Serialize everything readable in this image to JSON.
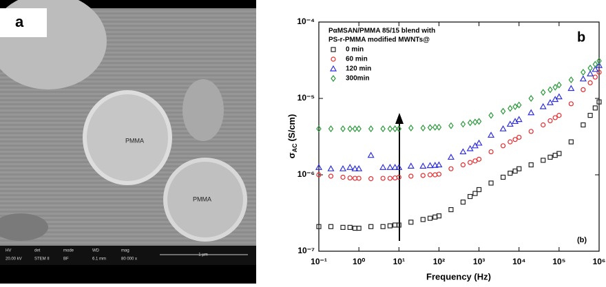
{
  "image_panel": {
    "label": "a",
    "annotations": [
      "PMMA",
      "PMMA"
    ],
    "info_bar": [
      [
        "HV",
        "20.00 kV"
      ],
      [
        "det",
        "STEM II"
      ],
      [
        "mode",
        "BF"
      ],
      [
        "WD",
        "6.1 mm"
      ],
      [
        "mag",
        "80 000 x"
      ]
    ],
    "scale_bar": "1 µm"
  },
  "chart_data": {
    "type": "scatter",
    "panel_label": "b",
    "annotation": "(b)",
    "legend_title": [
      "PαMSAN/PMMA 85/15 blend with",
      "PS-r-PMMA modified MWNTs@"
    ],
    "xlabel": "Frequency (Hz)",
    "ylabel": {
      "symbol": "σ",
      "subscript": "AC",
      "unit": "(S/cm)"
    },
    "log_x": true,
    "log_y": true,
    "xlim": [
      0.1,
      1000000
    ],
    "ylim": [
      1e-07,
      0.0001
    ],
    "xticks": [
      {
        "value": 0.1,
        "label": "10⁻¹"
      },
      {
        "value": 1,
        "label": "10⁰"
      },
      {
        "value": 10,
        "label": "10¹"
      },
      {
        "value": 100,
        "label": "10²"
      },
      {
        "value": 1000,
        "label": "10³"
      },
      {
        "value": 10000,
        "label": "10⁴"
      },
      {
        "value": 100000,
        "label": "10⁵"
      },
      {
        "value": 1000000,
        "label": "10⁶"
      }
    ],
    "yticks": [
      {
        "value": 1e-07,
        "label": "10⁻⁷"
      },
      {
        "value": 1e-06,
        "label": "10⁻⁶"
      },
      {
        "value": 1e-05,
        "label": "10⁻⁵"
      },
      {
        "value": 0.0001,
        "label": "10⁻⁴"
      }
    ],
    "x": [
      0.1,
      0.2,
      0.4,
      0.6,
      0.8,
      1,
      2,
      4,
      6,
      8,
      10,
      20,
      40,
      60,
      80,
      100,
      200,
      400,
      600,
      800,
      1000,
      2000,
      4000,
      6000,
      8000,
      10000,
      20000,
      40000,
      60000,
      80000,
      100000,
      200000,
      400000,
      600000,
      800000,
      1000000
    ],
    "series": [
      {
        "name": "0 min",
        "color": "#222222",
        "marker": "square",
        "values": [
          2.1e-07,
          2.1e-07,
          2.05e-07,
          2.05e-07,
          2e-07,
          2e-07,
          2.1e-07,
          2.1e-07,
          2.15e-07,
          2.2e-07,
          2.2e-07,
          2.4e-07,
          2.6e-07,
          2.7e-07,
          2.8e-07,
          2.9e-07,
          3.5e-07,
          4.4e-07,
          5.2e-07,
          5.7e-07,
          6.4e-07,
          7.8e-07,
          9.3e-07,
          1.05e-06,
          1.12e-06,
          1.2e-06,
          1.35e-06,
          1.55e-06,
          1.7e-06,
          1.8e-06,
          1.9e-06,
          2.7e-06,
          4.5e-06,
          6e-06,
          7.5e-06,
          9e-06
        ]
      },
      {
        "name": "60 min",
        "color": "#e8282b",
        "marker": "circle",
        "values": [
          1e-06,
          9.6e-07,
          9.3e-07,
          9.1e-07,
          9e-07,
          9e-07,
          8.9e-07,
          9e-07,
          9e-07,
          9.1e-07,
          9.3e-07,
          9.6e-07,
          9.8e-07,
          1e-06,
          1e-06,
          1.02e-06,
          1.2e-06,
          1.35e-06,
          1.45e-06,
          1.52e-06,
          1.6e-06,
          2e-06,
          2.4e-06,
          2.7e-06,
          2.9e-06,
          3.1e-06,
          3.7e-06,
          4.5e-06,
          5.1e-06,
          5.6e-06,
          6e-06,
          8.5e-06,
          1.3e-05,
          1.6e-05,
          1.9e-05,
          2.2e-05
        ]
      },
      {
        "name": "120 min",
        "color": "#2f2fe0",
        "marker": "triangle",
        "values": [
          1.25e-06,
          1.2e-06,
          1.2e-06,
          1.25e-06,
          1.2e-06,
          1.2e-06,
          1.8e-06,
          1.25e-06,
          1.25e-06,
          1.25e-06,
          1.25e-06,
          1.3e-06,
          1.3e-06,
          1.32e-06,
          1.33e-06,
          1.35e-06,
          1.7e-06,
          2e-06,
          2.2e-06,
          2.4e-06,
          2.6e-06,
          3.3e-06,
          4e-06,
          4.6e-06,
          5e-06,
          5.3e-06,
          6.5e-06,
          7.8e-06,
          8.8e-06,
          9.7e-06,
          1.05e-05,
          1.35e-05,
          1.8e-05,
          2.1e-05,
          2.4e-05,
          2.7e-05
        ]
      },
      {
        "name": "300min",
        "color": "#2a9a3a",
        "marker": "diamond",
        "values": [
          4e-06,
          4e-06,
          4e-06,
          4e-06,
          4e-06,
          4e-06,
          4e-06,
          4e-06,
          4e-06,
          4e-06,
          4e-06,
          4.1e-06,
          4.1e-06,
          4.15e-06,
          4.2e-06,
          4.2e-06,
          4.4e-06,
          4.6e-06,
          4.8e-06,
          4.9e-06,
          5e-06,
          6e-06,
          6.8e-06,
          7.4e-06,
          7.8e-06,
          8.2e-06,
          1e-05,
          1.2e-05,
          1.3e-05,
          1.4e-05,
          1.5e-05,
          1.75e-05,
          2.2e-05,
          2.5e-05,
          2.8e-05,
          3.1e-05
        ]
      }
    ]
  }
}
